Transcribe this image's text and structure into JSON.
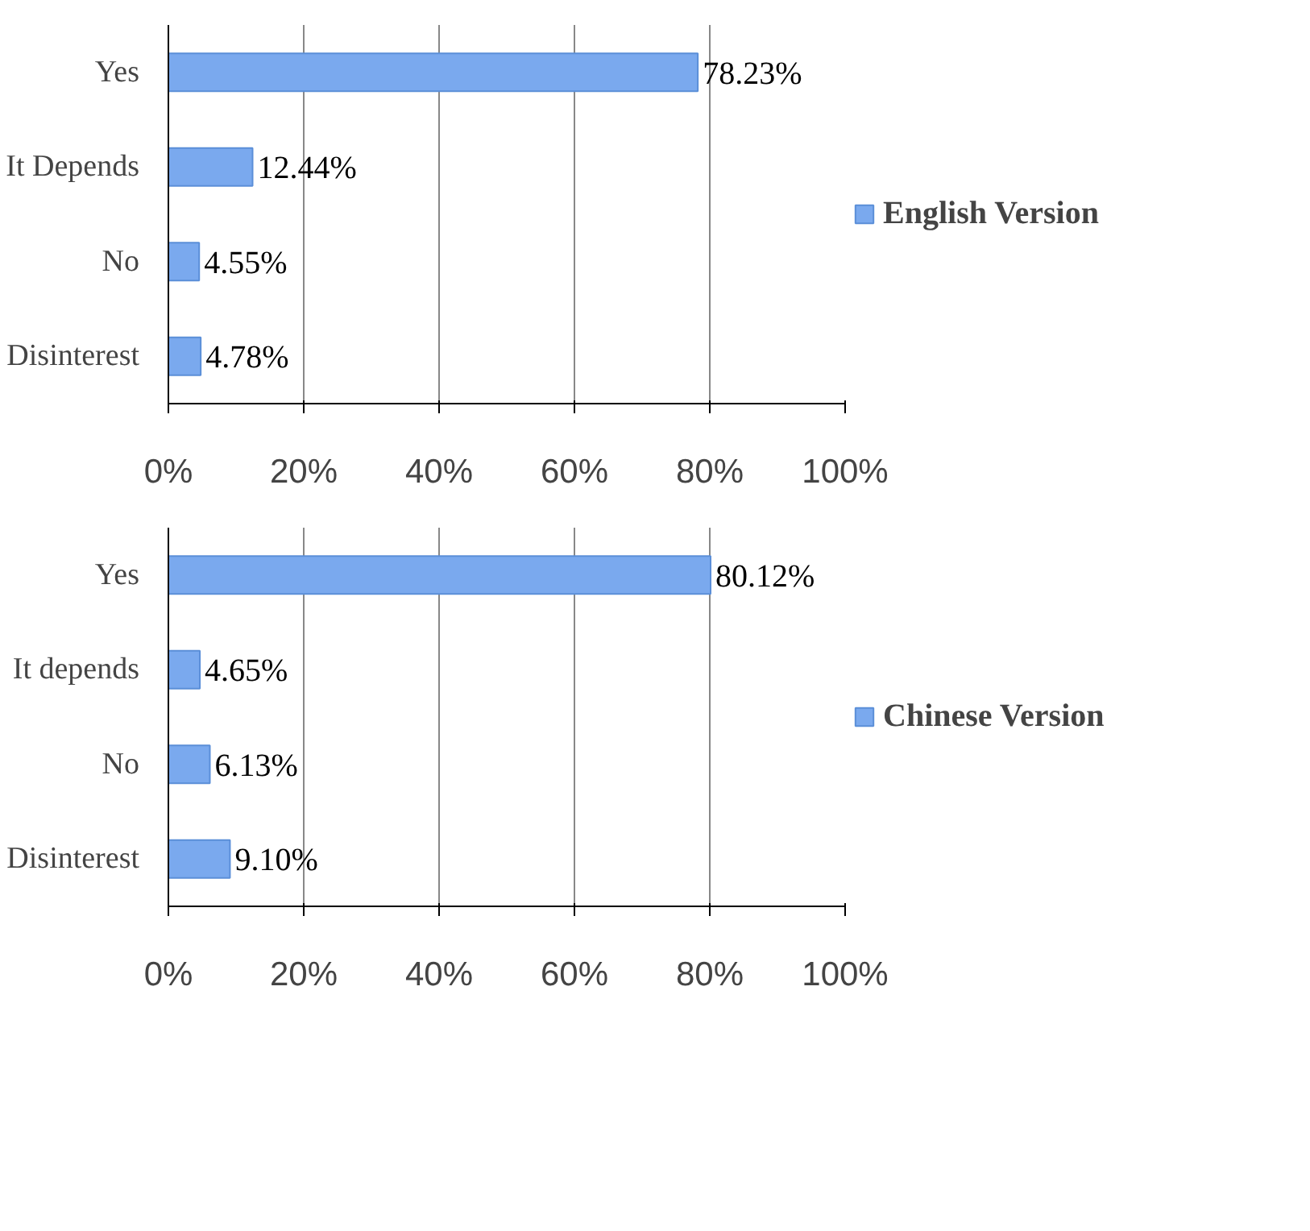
{
  "chart_data": [
    {
      "type": "bar",
      "orientation": "horizontal",
      "categories": [
        "Yes",
        "It Depends",
        "No",
        "Disinterest"
      ],
      "series": [
        {
          "name": "English Version",
          "color": "#7aa9ee",
          "values": [
            78.23,
            12.44,
            4.55,
            4.78
          ],
          "value_labels": [
            "78.23%",
            "12.44%",
            "4.55%",
            "4.78%"
          ]
        }
      ],
      "xlim": [
        0,
        100
      ],
      "xticks": [
        {
          "value": 0,
          "label": "0%"
        },
        {
          "value": 20,
          "label": "20%"
        },
        {
          "value": 40,
          "label": "40%"
        },
        {
          "value": 60,
          "label": "60%"
        },
        {
          "value": 80,
          "label": "80%"
        },
        {
          "value": 100,
          "label": "100%"
        }
      ],
      "grid": "x",
      "legend": "right"
    },
    {
      "type": "bar",
      "orientation": "horizontal",
      "categories": [
        "Yes",
        "It depends",
        "No",
        "Disinterest"
      ],
      "series": [
        {
          "name": "Chinese Version",
          "color": "#7aa9ee",
          "values": [
            80.12,
            4.65,
            6.13,
            9.1
          ],
          "value_labels": [
            "80.12%",
            "4.65%",
            "6.13%",
            "9.10%"
          ]
        }
      ],
      "xlim": [
        0,
        100
      ],
      "xticks": [
        {
          "value": 0,
          "label": "0%"
        },
        {
          "value": 20,
          "label": "20%"
        },
        {
          "value": 40,
          "label": "40%"
        },
        {
          "value": 60,
          "label": "60%"
        },
        {
          "value": 80,
          "label": "80%"
        },
        {
          "value": 100,
          "label": "100%"
        }
      ],
      "grid": "x",
      "legend": "right"
    }
  ]
}
